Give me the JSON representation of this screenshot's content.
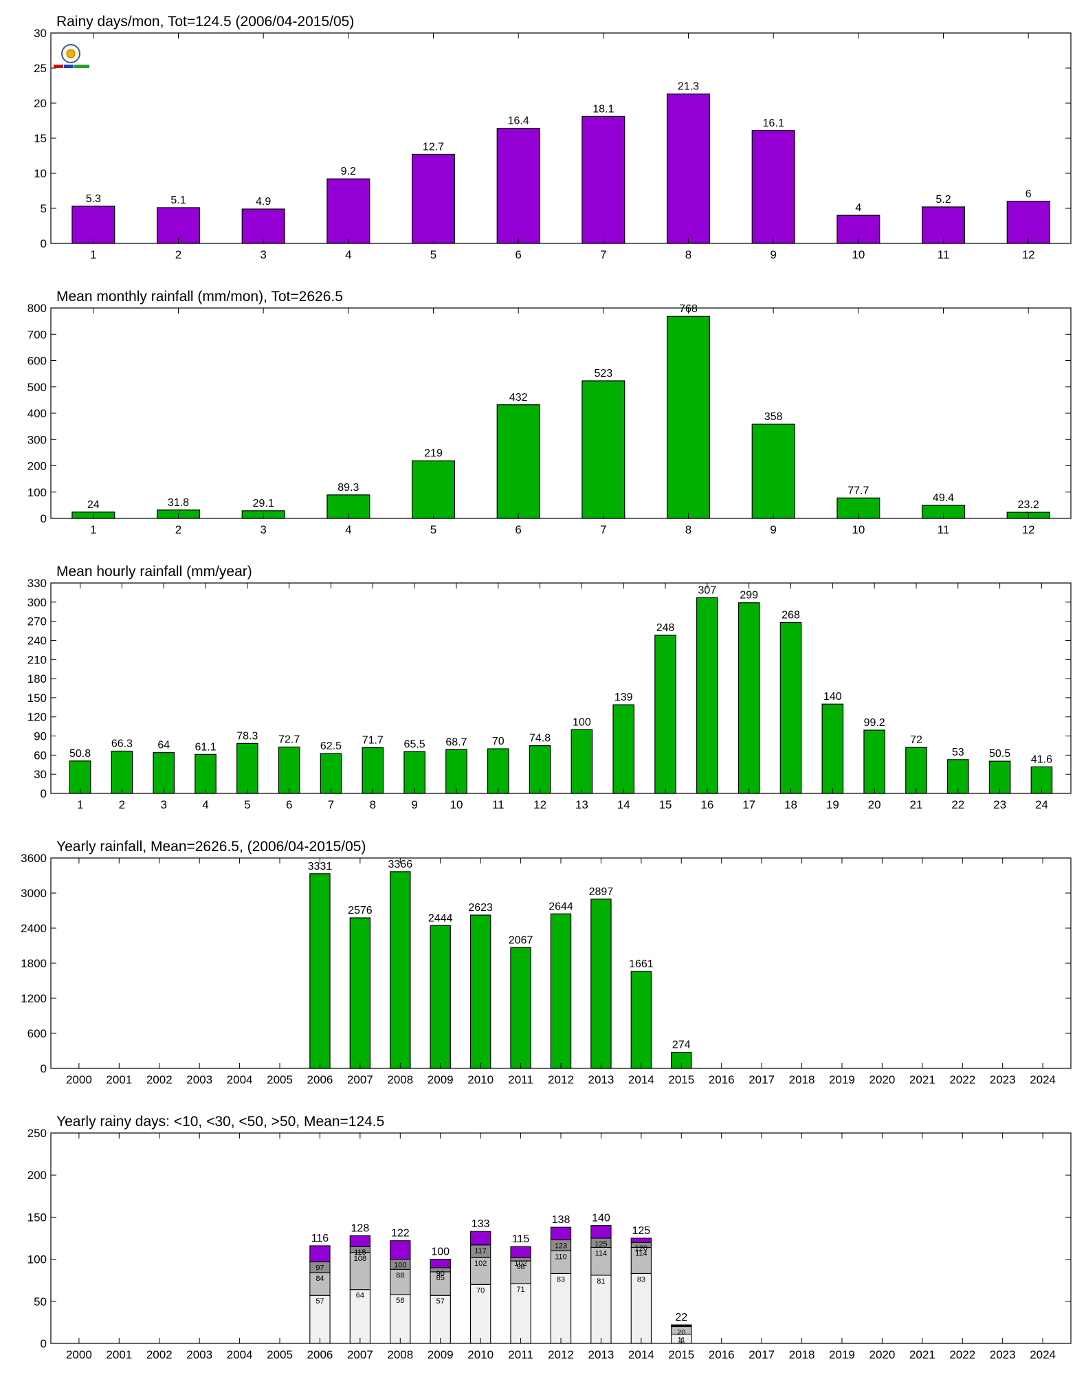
{
  "charts": [
    {
      "title": "Rainy days/mon, Tot=124.5 (2006/04-2015/05)",
      "chart_data": {
        "type": "bar",
        "categories": [
          "1",
          "2",
          "3",
          "4",
          "5",
          "6",
          "7",
          "8",
          "9",
          "10",
          "11",
          "12"
        ],
        "values": [
          5.3,
          5.1,
          4.9,
          9.2,
          12.7,
          16.4,
          18.1,
          21.3,
          16.1,
          4,
          5.2,
          6
        ],
        "value_labels": [
          "5.3",
          "5.1",
          "4.9",
          "9.2",
          "12.7",
          "16.4",
          "18.1",
          "21.3",
          "16.1",
          "4",
          "5.2",
          "6"
        ],
        "ylim": [
          0,
          30
        ],
        "yticks": [
          0,
          5,
          10,
          15,
          20,
          25,
          30
        ],
        "color": "#9400d3",
        "logo": true
      }
    },
    {
      "title": "Mean monthly rainfall (mm/mon), Tot=2626.5",
      "chart_data": {
        "type": "bar",
        "categories": [
          "1",
          "2",
          "3",
          "4",
          "5",
          "6",
          "7",
          "8",
          "9",
          "10",
          "11",
          "12"
        ],
        "values": [
          24,
          31.8,
          29.1,
          89.3,
          219,
          432,
          523,
          768,
          358,
          77.7,
          49.4,
          23.2
        ],
        "value_labels": [
          "24",
          "31.8",
          "29.1",
          "89.3",
          "219",
          "432",
          "523",
          "768",
          "358",
          "77.7",
          "49.4",
          "23.2"
        ],
        "ylim": [
          0,
          800
        ],
        "yticks": [
          0,
          100,
          200,
          300,
          400,
          500,
          600,
          700,
          800
        ],
        "color": "#00b000"
      }
    },
    {
      "title": "Mean hourly rainfall (mm/year)",
      "chart_data": {
        "type": "bar",
        "categories": [
          "1",
          "2",
          "3",
          "4",
          "5",
          "6",
          "7",
          "8",
          "9",
          "10",
          "11",
          "12",
          "13",
          "14",
          "15",
          "16",
          "17",
          "18",
          "19",
          "20",
          "21",
          "22",
          "23",
          "24"
        ],
        "values": [
          50.8,
          66.3,
          64,
          61.1,
          78.3,
          72.7,
          62.5,
          71.7,
          65.5,
          68.7,
          70,
          74.8,
          100,
          139,
          248,
          307,
          299,
          268,
          140,
          99.2,
          72,
          53,
          50.5,
          41.6
        ],
        "value_labels": [
          "50.8",
          "66.3",
          "64",
          "61.1",
          "78.3",
          "72.7",
          "62.5",
          "71.7",
          "65.5",
          "68.7",
          "70",
          "74.8",
          "100",
          "139",
          "248",
          "307",
          "299",
          "268",
          "140",
          "99.2",
          "72",
          "53",
          "50.5",
          "41.6"
        ],
        "ylim": [
          0,
          330
        ],
        "yticks": [
          0,
          30,
          60,
          90,
          120,
          150,
          180,
          210,
          240,
          270,
          300,
          330
        ],
        "color": "#00b000"
      }
    },
    {
      "title": "Yearly rainfall, Mean=2626.5, (2006/04-2015/05)",
      "chart_data": {
        "type": "bar",
        "categories": [
          "2000",
          "2001",
          "2002",
          "2003",
          "2004",
          "2005",
          "2006",
          "2007",
          "2008",
          "2009",
          "2010",
          "2011",
          "2012",
          "2013",
          "2014",
          "2015",
          "2016",
          "2017",
          "2018",
          "2019",
          "2020",
          "2021",
          "2022",
          "2023",
          "2024"
        ],
        "values": [
          null,
          null,
          null,
          null,
          null,
          null,
          3331,
          2576,
          3366,
          2444,
          2623,
          2067,
          2644,
          2897,
          1661,
          274,
          null,
          null,
          null,
          null,
          null,
          null,
          null,
          null,
          null
        ],
        "value_labels": [
          "",
          "",
          "",
          "",
          "",
          "",
          "3331",
          "2576",
          "3366",
          "2444",
          "2623",
          "2067",
          "2644",
          "2897",
          "1661",
          "274",
          "",
          "",
          "",
          "",
          "",
          "",
          "",
          "",
          ""
        ],
        "ylim": [
          0,
          3600
        ],
        "yticks": [
          0,
          600,
          1200,
          1800,
          2400,
          3000,
          3600
        ],
        "color": "#00b000"
      }
    },
    {
      "title": "Yearly rainy days: <10, <30, <50, >50, Mean=124.5",
      "chart_data": {
        "type": "stacked-bar",
        "categories": [
          "2000",
          "2001",
          "2002",
          "2003",
          "2004",
          "2005",
          "2006",
          "2007",
          "2008",
          "2009",
          "2010",
          "2011",
          "2012",
          "2013",
          "2014",
          "2015",
          "2016",
          "2017",
          "2018",
          "2019",
          "2020",
          "2021",
          "2022",
          "2023",
          "2024"
        ],
        "ylim": [
          0,
          250
        ],
        "yticks": [
          0,
          50,
          100,
          150,
          200,
          250
        ],
        "colors": [
          "#f0f0f0",
          "#bebebe",
          "#8c8c8c",
          "#9400d3"
        ],
        "cumulative": [
          {
            "year": "2006",
            "levels": [
              57,
              84,
              97,
              116
            ],
            "labels": [
              "57",
              "84",
              "97",
              "116"
            ]
          },
          {
            "year": "2007",
            "levels": [
              64,
              108,
              115,
              128
            ],
            "labels": [
              "64",
              "108",
              "115",
              "128"
            ]
          },
          {
            "year": "2008",
            "levels": [
              58,
              88,
              100,
              122
            ],
            "labels": [
              "58",
              "88",
              "100",
              "122"
            ]
          },
          {
            "year": "2009",
            "levels": [
              57,
              85,
              90,
              100
            ],
            "labels": [
              "57",
              "85",
              "90",
              "100"
            ]
          },
          {
            "year": "2010",
            "levels": [
              70,
              102,
              117,
              133
            ],
            "labels": [
              "70",
              "102",
              "117",
              "133"
            ]
          },
          {
            "year": "2011",
            "levels": [
              71,
              98,
              102,
              115
            ],
            "labels": [
              "71",
              "98",
              "102",
              "115"
            ]
          },
          {
            "year": "2012",
            "levels": [
              83,
              110,
              123,
              138
            ],
            "labels": [
              "83",
              "110",
              "123",
              "138"
            ]
          },
          {
            "year": "2013",
            "levels": [
              81,
              114,
              125,
              140
            ],
            "labels": [
              "81",
              "114",
              "125",
              "140"
            ]
          },
          {
            "year": "2014",
            "levels": [
              83,
              114,
              120,
              125
            ],
            "labels": [
              "83",
              "114",
              "120",
              "125"
            ]
          },
          {
            "year": "2015",
            "levels": [
              11,
              20,
              21,
              22
            ],
            "labels": [
              "11",
              "20",
              "",
              "22"
            ]
          }
        ]
      }
    }
  ]
}
